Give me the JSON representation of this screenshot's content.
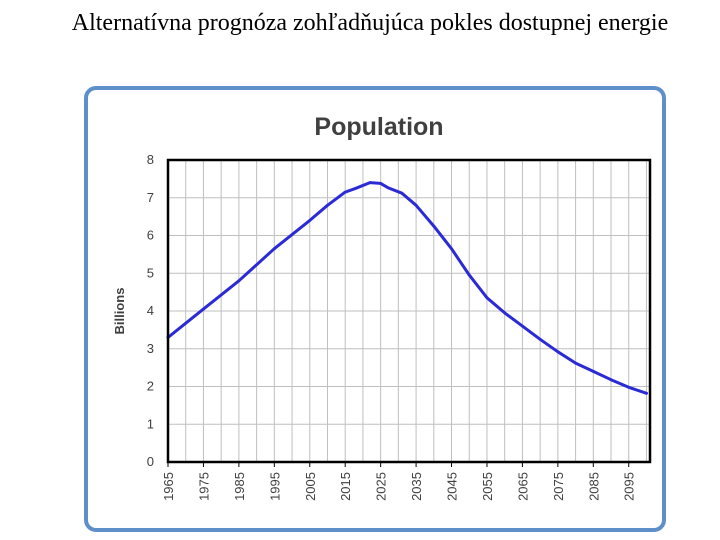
{
  "slide": {
    "title": "Alternatívna prognóza zohľadňujúca pokles dostupnej energie"
  },
  "colors": {
    "frame": "#5f8fc9",
    "line": "#2b2bd6",
    "grid": "#bfbfbf",
    "axis": "#000000",
    "text": "#404040"
  },
  "chart_data": {
    "type": "line",
    "title": "Population",
    "xlabel": "",
    "ylabel": "Billions",
    "xlim": [
      1965,
      2101
    ],
    "ylim": [
      0,
      8
    ],
    "grid": true,
    "legend": "none",
    "x_ticks": [
      1965,
      1975,
      1985,
      1995,
      2005,
      2015,
      2025,
      2035,
      2045,
      2055,
      2065,
      2075,
      2085,
      2095
    ],
    "y_ticks": [
      0,
      1,
      2,
      3,
      4,
      5,
      6,
      7,
      8
    ],
    "series": [
      {
        "x": [
          1965,
          1975,
          1985,
          1995,
          2005,
          2010,
          2015,
          2018,
          2022,
          2025,
          2027,
          2031,
          2035,
          2040,
          2045,
          2050,
          2055,
          2060,
          2065,
          2070,
          2075,
          2080,
          2085,
          2090,
          2095,
          2100
        ],
        "values": [
          3.3,
          4.05,
          4.8,
          5.65,
          6.4,
          6.8,
          7.15,
          7.25,
          7.4,
          7.38,
          7.27,
          7.12,
          6.8,
          6.25,
          5.65,
          4.95,
          4.35,
          3.95,
          3.6,
          3.25,
          2.92,
          2.62,
          2.4,
          2.18,
          1.98,
          1.82
        ]
      }
    ]
  }
}
